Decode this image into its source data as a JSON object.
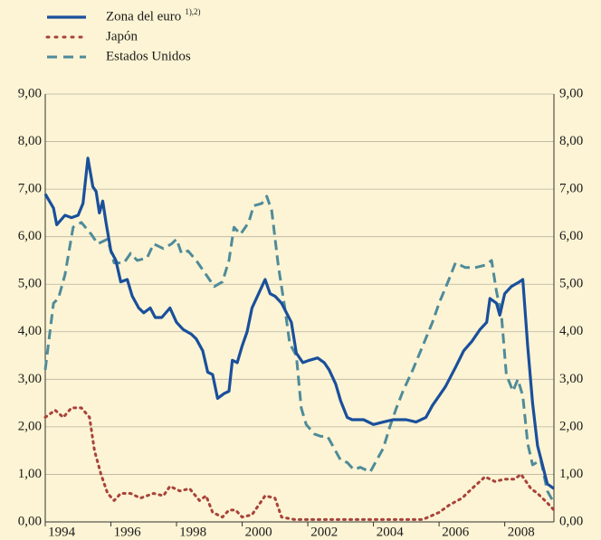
{
  "chart_data": {
    "type": "line",
    "legend_position": "top-left",
    "grid": true,
    "xlim": [
      1994,
      2009.5
    ],
    "xticks": [
      1994,
      1996,
      1998,
      2000,
      2002,
      2004,
      2006,
      2008
    ],
    "ylim": [
      0,
      9
    ],
    "yticks": [
      {
        "value": 0,
        "label": "0,00"
      },
      {
        "value": 1,
        "label": "1,00"
      },
      {
        "value": 2,
        "label": "2,00"
      },
      {
        "value": 3,
        "label": "3,00"
      },
      {
        "value": 4,
        "label": "4,00"
      },
      {
        "value": 5,
        "label": "5,00"
      },
      {
        "value": 6,
        "label": "6,00"
      },
      {
        "value": 7,
        "label": "7,00"
      },
      {
        "value": 8,
        "label": "8,00"
      },
      {
        "value": 9,
        "label": "9,00"
      }
    ],
    "series": [
      {
        "name": "Zona del euro",
        "footnote_marks": "1),2)",
        "color": "#1a4f9c",
        "style": "solid",
        "x": [
          1994.0,
          1994.25,
          1994.35,
          1994.6,
          1994.8,
          1995.0,
          1995.15,
          1995.3,
          1995.45,
          1995.55,
          1995.65,
          1995.75,
          1995.85,
          1996.0,
          1996.15,
          1996.3,
          1996.5,
          1996.65,
          1996.85,
          1997.0,
          1997.2,
          1997.35,
          1997.55,
          1997.8,
          1998.0,
          1998.2,
          1998.45,
          1998.6,
          1998.8,
          1998.95,
          1999.1,
          1999.25,
          1999.45,
          1999.6,
          1999.7,
          1999.85,
          2000.0,
          2000.15,
          2000.3,
          2000.5,
          2000.7,
          2000.85,
          2001.0,
          2001.2,
          2001.35,
          2001.5,
          2001.65,
          2001.85,
          2002.05,
          2002.3,
          2002.5,
          2002.65,
          2002.85,
          2003.0,
          2003.2,
          2003.35,
          2003.7,
          2004.0,
          2004.3,
          2004.6,
          2005.0,
          2005.3,
          2005.6,
          2005.8,
          2006.0,
          2006.2,
          2006.5,
          2006.75,
          2007.0,
          2007.25,
          2007.45,
          2007.55,
          2007.75,
          2007.85,
          2008.0,
          2008.2,
          2008.45,
          2008.55,
          2008.7,
          2008.85,
          2009.0,
          2009.15,
          2009.3,
          2009.5
        ],
        "values": [
          6.9,
          6.6,
          6.25,
          6.45,
          6.4,
          6.45,
          6.7,
          7.65,
          7.05,
          6.95,
          6.5,
          6.75,
          6.3,
          5.7,
          5.5,
          5.05,
          5.1,
          4.75,
          4.5,
          4.4,
          4.5,
          4.3,
          4.3,
          4.5,
          4.2,
          4.05,
          3.95,
          3.85,
          3.6,
          3.15,
          3.1,
          2.6,
          2.7,
          2.75,
          3.4,
          3.35,
          3.7,
          4.0,
          4.5,
          4.8,
          5.1,
          4.8,
          4.75,
          4.6,
          4.4,
          4.2,
          3.55,
          3.35,
          3.4,
          3.45,
          3.35,
          3.2,
          2.9,
          2.55,
          2.2,
          2.15,
          2.15,
          2.05,
          2.1,
          2.15,
          2.15,
          2.1,
          2.2,
          2.45,
          2.65,
          2.85,
          3.25,
          3.6,
          3.8,
          4.05,
          4.2,
          4.7,
          4.6,
          4.35,
          4.8,
          4.95,
          5.05,
          5.1,
          3.7,
          2.5,
          1.6,
          1.2,
          0.8,
          0.7
        ]
      },
      {
        "name": "Japón",
        "color": "#a8423a",
        "style": "dotted",
        "x": [
          1994.0,
          1994.3,
          1994.55,
          1994.8,
          1995.1,
          1995.35,
          1995.5,
          1995.7,
          1995.9,
          1996.1,
          1996.3,
          1996.6,
          1996.9,
          1997.3,
          1997.6,
          1997.8,
          1998.1,
          1998.4,
          1998.7,
          1998.9,
          1999.1,
          1999.4,
          1999.6,
          1999.8,
          2000.0,
          2000.3,
          2000.5,
          2000.7,
          2001.0,
          2001.2,
          2001.6,
          2002.5,
          2004.0,
          2005.5,
          2006.0,
          2006.3,
          2006.7,
          2007.0,
          2007.4,
          2007.7,
          2008.0,
          2008.3,
          2008.5,
          2008.8,
          2009.0,
          2009.3,
          2009.5
        ],
        "values": [
          2.2,
          2.35,
          2.2,
          2.4,
          2.4,
          2.2,
          1.5,
          1.0,
          0.6,
          0.45,
          0.6,
          0.6,
          0.5,
          0.6,
          0.55,
          0.75,
          0.65,
          0.7,
          0.45,
          0.55,
          0.2,
          0.1,
          0.25,
          0.25,
          0.1,
          0.15,
          0.35,
          0.55,
          0.5,
          0.1,
          0.05,
          0.05,
          0.05,
          0.05,
          0.2,
          0.35,
          0.5,
          0.7,
          0.95,
          0.85,
          0.9,
          0.9,
          1.0,
          0.7,
          0.6,
          0.4,
          0.25
        ]
      },
      {
        "name": "Estados Unidos",
        "color": "#4f8b9a",
        "style": "dashed",
        "x": [
          1994.0,
          1994.25,
          1994.4,
          1994.6,
          1994.85,
          1995.1,
          1995.4,
          1995.6,
          1995.9,
          1996.1,
          1996.4,
          1996.6,
          1996.8,
          1997.1,
          1997.3,
          1997.6,
          1997.85,
          1998.0,
          1998.15,
          1998.35,
          1998.6,
          1998.9,
          1999.15,
          1999.4,
          1999.6,
          1999.75,
          1999.95,
          2000.2,
          2000.35,
          2000.6,
          2000.75,
          2000.9,
          2001.1,
          2001.3,
          2001.45,
          2001.65,
          2001.8,
          2001.95,
          2002.2,
          2002.4,
          2002.6,
          2002.8,
          2003.0,
          2003.2,
          2003.4,
          2003.6,
          2003.9,
          2004.1,
          2004.3,
          2004.5,
          2004.7,
          2004.9,
          2005.2,
          2005.5,
          2005.8,
          2006.0,
          2006.3,
          2006.5,
          2006.8,
          2007.1,
          2007.4,
          2007.6,
          2007.75,
          2007.9,
          2008.05,
          2008.25,
          2008.4,
          2008.55,
          2008.7,
          2008.85,
          2009.1,
          2009.3,
          2009.5
        ],
        "values": [
          3.2,
          4.6,
          4.7,
          5.2,
          6.2,
          6.3,
          6.05,
          5.85,
          5.95,
          5.45,
          5.45,
          5.65,
          5.5,
          5.55,
          5.85,
          5.75,
          5.85,
          5.95,
          5.65,
          5.7,
          5.5,
          5.2,
          4.95,
          5.05,
          5.5,
          6.2,
          6.05,
          6.3,
          6.65,
          6.7,
          6.85,
          6.55,
          5.4,
          4.5,
          3.75,
          3.5,
          2.4,
          2.05,
          1.85,
          1.8,
          1.8,
          1.55,
          1.3,
          1.25,
          1.1,
          1.15,
          1.05,
          1.3,
          1.55,
          2.0,
          2.4,
          2.75,
          3.2,
          3.7,
          4.2,
          4.6,
          5.1,
          5.45,
          5.35,
          5.35,
          5.4,
          5.5,
          4.85,
          4.35,
          3.1,
          2.75,
          3.0,
          2.65,
          1.65,
          1.2,
          1.3,
          0.65,
          0.4
        ]
      }
    ]
  }
}
